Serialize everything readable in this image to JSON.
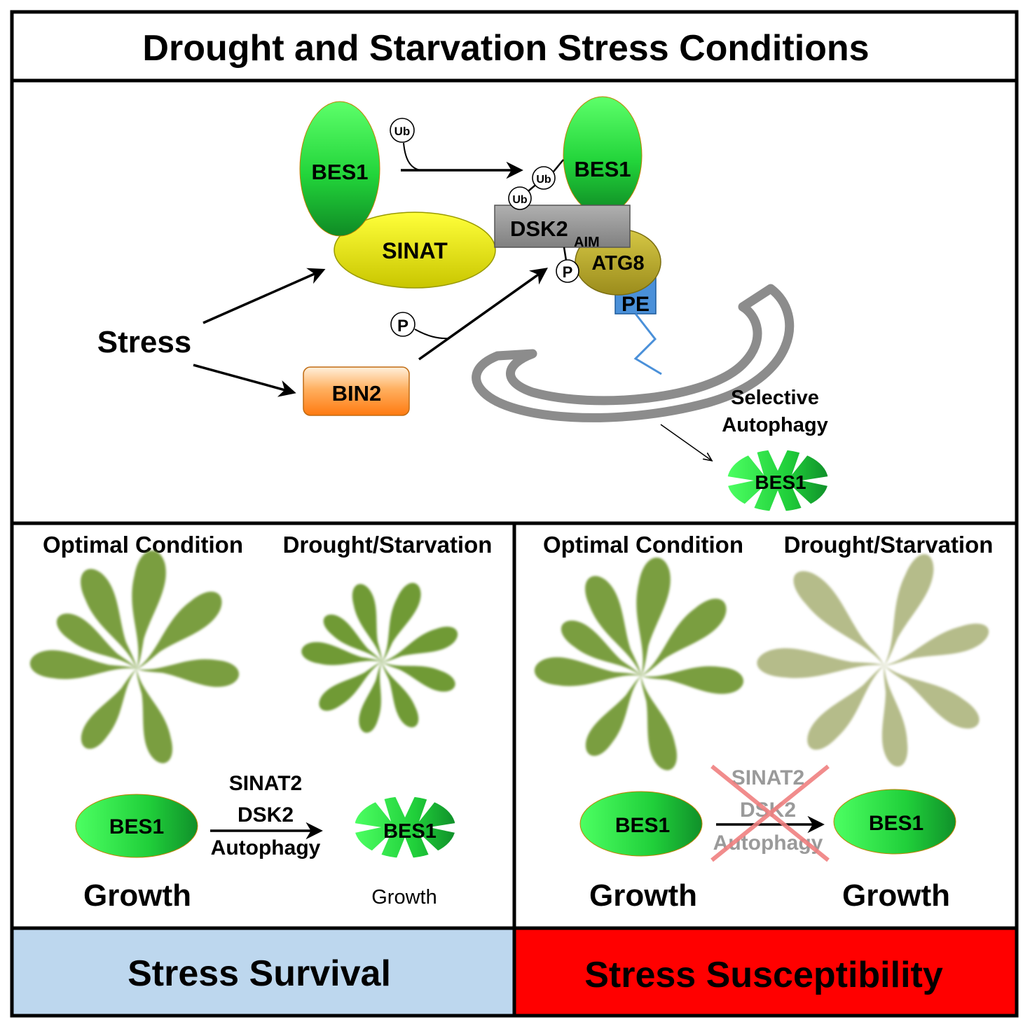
{
  "title": "Drought and Starvation Stress Conditions",
  "mechanism": {
    "stress": "Stress",
    "sinat": "SINAT",
    "bin2": "BIN2",
    "bes1": "BES1",
    "bes1_ub": "BES1",
    "bes1_degraded": "BES1",
    "dsk2": "DSK2",
    "aim": "AIM",
    "atg8": "ATG8",
    "pe": "PE",
    "ub": "Ub",
    "p": "P",
    "selective_line1": "Selective",
    "selective_line2": "Autophagy"
  },
  "left_panel": {
    "optimal": "Optimal Condition",
    "drought": "Drought/Starvation",
    "bes1": "BES1",
    "bes1_degraded": "BES1",
    "arrow_label_1": "SINAT2",
    "arrow_label_2": "DSK2",
    "arrow_label_3": "Autophagy",
    "growth_left": "Growth",
    "growth_right": "Growth",
    "footer": "Stress Survival",
    "footer_color": "#bdd7ee"
  },
  "right_panel": {
    "optimal": "Optimal Condition",
    "drought": "Drought/Starvation",
    "bes1_left": "BES1",
    "bes1_right": "BES1",
    "arrow_label_1": "SINAT2",
    "arrow_label_2": "DSK2",
    "arrow_label_3": "Autophagy",
    "growth_left": "Growth",
    "growth_right": "Growth",
    "footer": "Stress Susceptibility",
    "footer_color": "#ff0000"
  },
  "colors": {
    "bes1_green": "#2ecc40",
    "sinat_yellow": "#f2f200",
    "bin2_orange": "#ff8a1e",
    "atg8_olive": "#b8a830",
    "dsk2_gray": "#9a9a9a",
    "pe_blue": "#4a90d9",
    "leaf_green": "#7a9e3f",
    "leaf_pale": "#b5bc8a"
  }
}
